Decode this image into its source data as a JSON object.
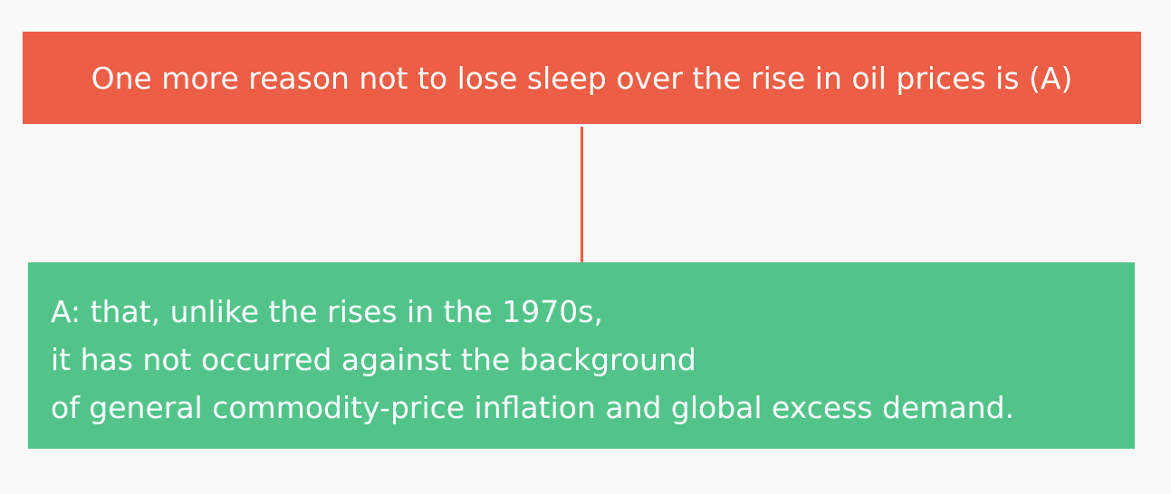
{
  "question": {
    "text": "One more reason not to lose sleep over the rise in oil prices is (A)"
  },
  "answer": {
    "lines": [
      "A: that, unlike the rises in the 1970s,",
      "it has not occurred against the background",
      "of general commodity-price inflation and global excess demand."
    ]
  },
  "colors": {
    "question_box": "#ec5e45",
    "answer_box": "#52c48b",
    "background": "#fafafa",
    "text": "#ffffff"
  }
}
